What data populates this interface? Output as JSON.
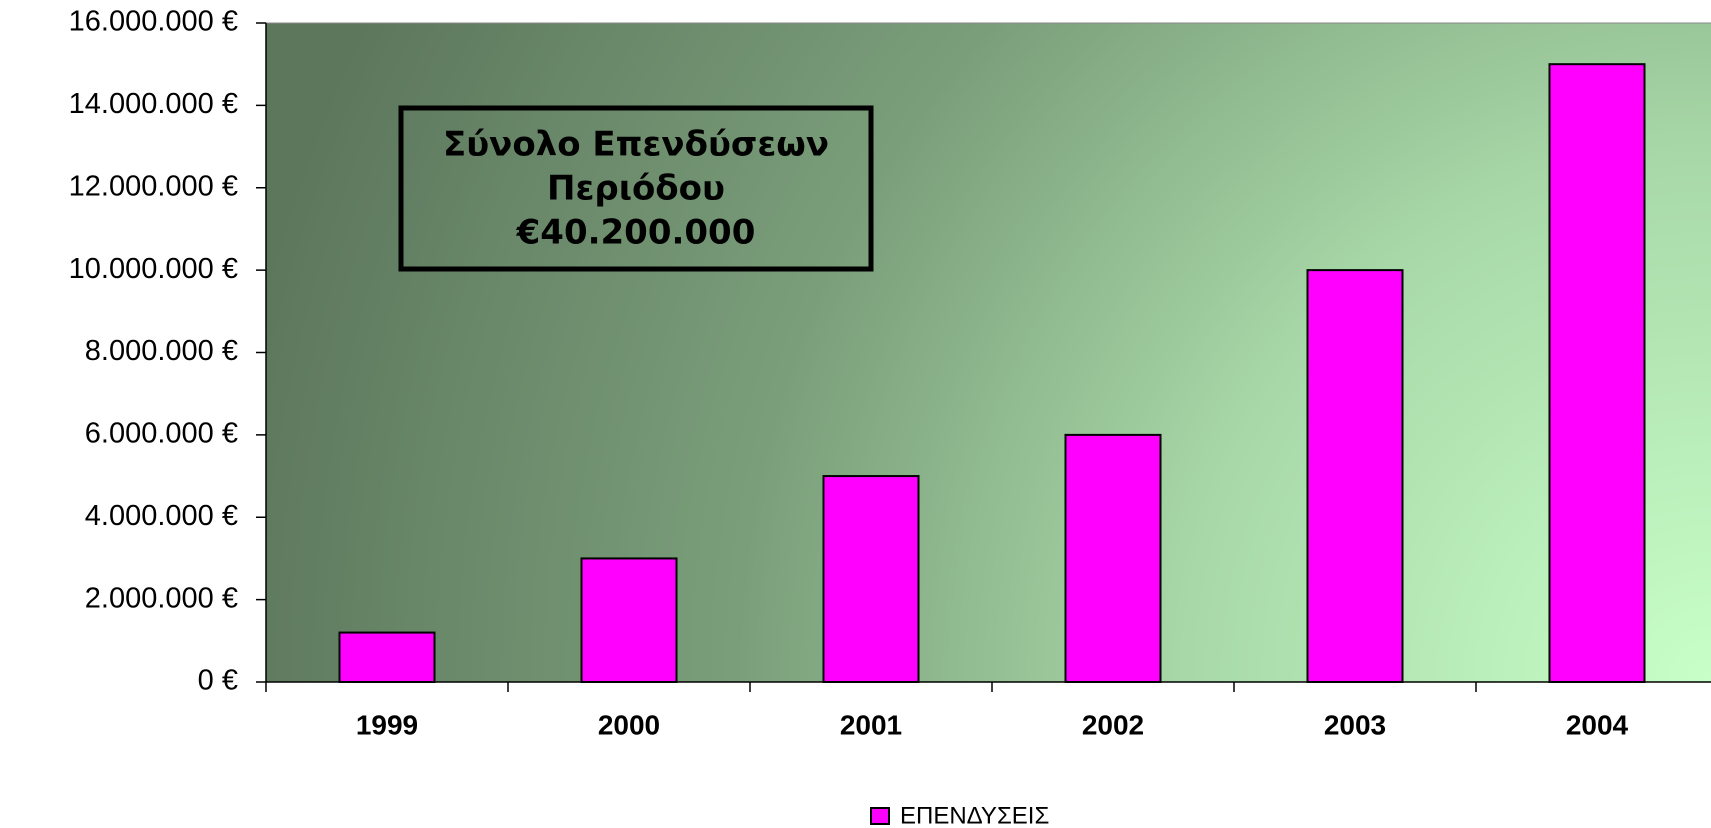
{
  "chart_data": {
    "type": "bar",
    "categories": [
      "1999",
      "2000",
      "2001",
      "2002",
      "2003",
      "2004"
    ],
    "series": [
      {
        "name": "ΕΠΕΝΔΥΣΕΙΣ",
        "color": "#ff00ff",
        "values": [
          1200000,
          3000000,
          5000000,
          6000000,
          10000000,
          15000000
        ]
      }
    ],
    "ylim": [
      0,
      16000000
    ],
    "yticks": [
      {
        "value": 0,
        "label": "0 €"
      },
      {
        "value": 2000000,
        "label": "2.000.000 €"
      },
      {
        "value": 4000000,
        "label": "4.000.000 €"
      },
      {
        "value": 6000000,
        "label": "6.000.000 €"
      },
      {
        "value": 8000000,
        "label": "8.000.000 €"
      },
      {
        "value": 10000000,
        "label": "10.000.000 €"
      },
      {
        "value": 12000000,
        "label": "12.000.000 €"
      },
      {
        "value": 14000000,
        "label": "14.000.000 €"
      },
      {
        "value": 16000000,
        "label": "16.000.000 €"
      }
    ],
    "annotation": [
      "Σύνολο Επενδύσεων",
      "Περιόδου",
      "€40.200.000"
    ],
    "legend": "bottom"
  }
}
